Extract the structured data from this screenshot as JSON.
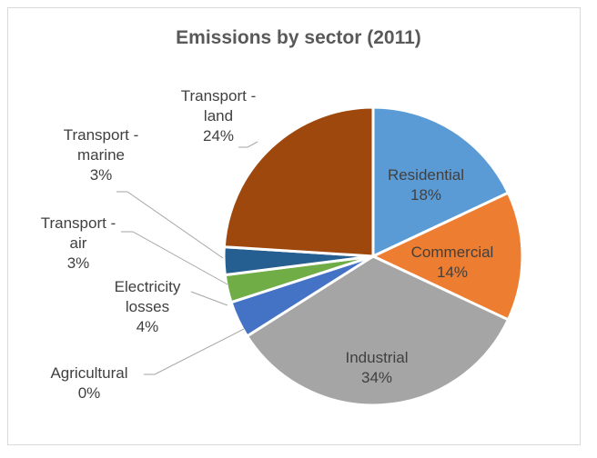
{
  "chart_data": {
    "type": "pie",
    "title": "Emissions by sector (2011)",
    "slices": [
      {
        "name": "Residential",
        "value": 18,
        "label": "18%",
        "color": "#5b9bd5"
      },
      {
        "name": "Commercial",
        "value": 14,
        "label": "14%",
        "color": "#ed7d31"
      },
      {
        "name": "Industrial",
        "value": 34,
        "label": "34%",
        "color": "#a5a5a5"
      },
      {
        "name": "Agricultural",
        "value": 0,
        "label": "0%",
        "color": "#ffc000"
      },
      {
        "name": "Electricity losses",
        "value": 4,
        "label": "4%",
        "color": "#4472c4"
      },
      {
        "name": "Transport - air",
        "value": 3,
        "label": "3%",
        "color": "#70ad47"
      },
      {
        "name": "Transport - marine",
        "value": 3,
        "label": "3%",
        "color": "#255e91"
      },
      {
        "name": "Transport - land",
        "value": 24,
        "label": "24%",
        "color": "#9e480e"
      }
    ],
    "legend": "none",
    "data_labels": "category name and percentage"
  }
}
